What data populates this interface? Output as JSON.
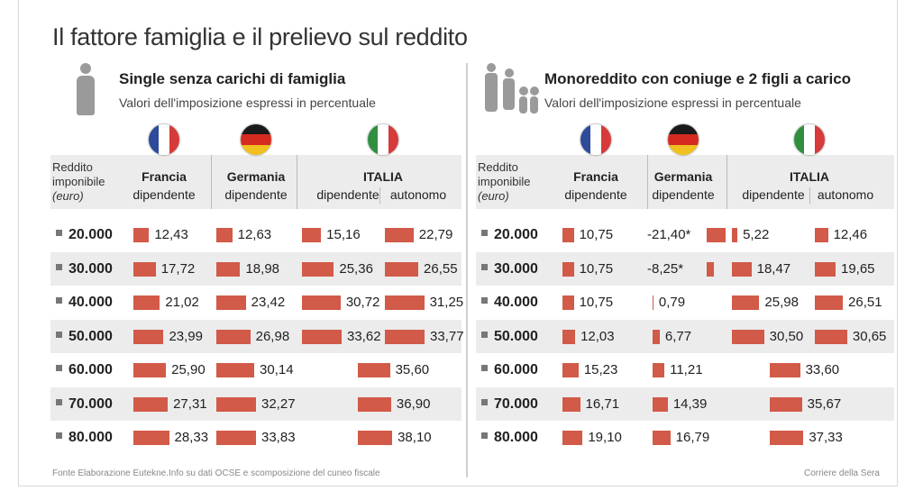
{
  "title": "Il fattore famiglia e il prelievo sul reddito",
  "header_label": [
    "Reddito",
    "imponibile",
    "(euro)"
  ],
  "rows": [
    "20.000",
    "30.000",
    "40.000",
    "50.000",
    "60.000",
    "70.000",
    "80.000"
  ],
  "colors": {
    "bar": "#d25a48",
    "shade": "#ececec",
    "fr_blue": "#2d4b9a",
    "fr_red": "#d63a3a",
    "de_black": "#1a1a1a",
    "de_red": "#d42a20",
    "de_gold": "#f0c020",
    "it_green": "#2f8f3f",
    "it_red": "#d63a3a"
  },
  "footer": {
    "source": "Fonte Elaborazione Eutekne.Info su dati OCSE e scomposizione del cuneo fiscale",
    "credit": "Corriere della Sera"
  },
  "chart_data": [
    {
      "type": "table",
      "title": "Single senza carichi di famiglia",
      "subtitle": "Valori dell'imposizione espressi in percentuale",
      "categories": [
        "20.000",
        "30.000",
        "40.000",
        "50.000",
        "60.000",
        "70.000",
        "80.000"
      ],
      "columns": [
        {
          "country": "Francia",
          "type": "dipendente"
        },
        {
          "country": "Germania",
          "type": "dipendente"
        },
        {
          "country": "ITALIA",
          "type": "dipendente"
        },
        {
          "country": "",
          "type": "autonomo"
        }
      ],
      "series": [
        {
          "name": "Francia dipendente",
          "values": [
            12.43,
            17.72,
            21.02,
            23.99,
            25.9,
            27.31,
            28.33
          ],
          "labels": [
            "12,43",
            "17,72",
            "21,02",
            "23,99",
            "25,90",
            "27,31",
            "28,33"
          ]
        },
        {
          "name": "Germania dipendente",
          "values": [
            12.63,
            18.98,
            23.42,
            26.98,
            30.14,
            32.27,
            33.83
          ],
          "labels": [
            "12,63",
            "18,98",
            "23,42",
            "26,98",
            "30,14",
            "32,27",
            "33,83"
          ]
        },
        {
          "name": "ITALIA dipendente",
          "values": [
            15.16,
            25.36,
            30.72,
            33.62,
            null,
            null,
            null
          ],
          "labels": [
            "15,16",
            "25,36",
            "30,72",
            "33,62",
            "",
            "",
            ""
          ]
        },
        {
          "name": "ITALIA autonomo",
          "values": [
            22.79,
            26.55,
            31.25,
            33.77,
            35.6,
            36.9,
            38.1
          ],
          "labels": [
            "22,79",
            "26,55",
            "31,25",
            "33,77",
            "35,60",
            "36,90",
            "38,10"
          ]
        }
      ]
    },
    {
      "type": "table",
      "title": "Monoreddito con coniuge e 2 figli a carico",
      "subtitle": "Valori dell'imposizione espressi in percentuale",
      "categories": [
        "20.000",
        "30.000",
        "40.000",
        "50.000",
        "60.000",
        "70.000",
        "80.000"
      ],
      "columns": [
        {
          "country": "Francia",
          "type": "dipendente"
        },
        {
          "country": "Germania",
          "type": "dipendente"
        },
        {
          "country": "ITALIA",
          "type": "dipendente"
        },
        {
          "country": "",
          "type": "autonomo"
        }
      ],
      "series": [
        {
          "name": "Francia dipendente",
          "values": [
            10.75,
            10.75,
            10.75,
            12.03,
            15.23,
            16.71,
            19.1
          ],
          "labels": [
            "10,75",
            "10,75",
            "10,75",
            "12,03",
            "15,23",
            "16,71",
            "19,10"
          ]
        },
        {
          "name": "Germania dipendente",
          "values": [
            -21.4,
            -8.25,
            0.79,
            6.77,
            11.21,
            14.39,
            16.79
          ],
          "labels": [
            "-21,40*",
            "-8,25*",
            "0,79",
            "6,77",
            "11,21",
            "14,39",
            "16,79"
          ]
        },
        {
          "name": "ITALIA dipendente",
          "values": [
            5.22,
            18.47,
            25.98,
            30.5,
            null,
            null,
            null
          ],
          "labels": [
            "5,22",
            "18,47",
            "25,98",
            "30,50",
            "",
            "",
            ""
          ]
        },
        {
          "name": "ITALIA autonomo",
          "values": [
            12.46,
            19.65,
            26.51,
            30.65,
            33.6,
            35.67,
            37.33
          ],
          "labels": [
            "12,46",
            "19,65",
            "26,51",
            "30,65",
            "33,60",
            "35,67",
            "37,33"
          ]
        }
      ]
    }
  ]
}
